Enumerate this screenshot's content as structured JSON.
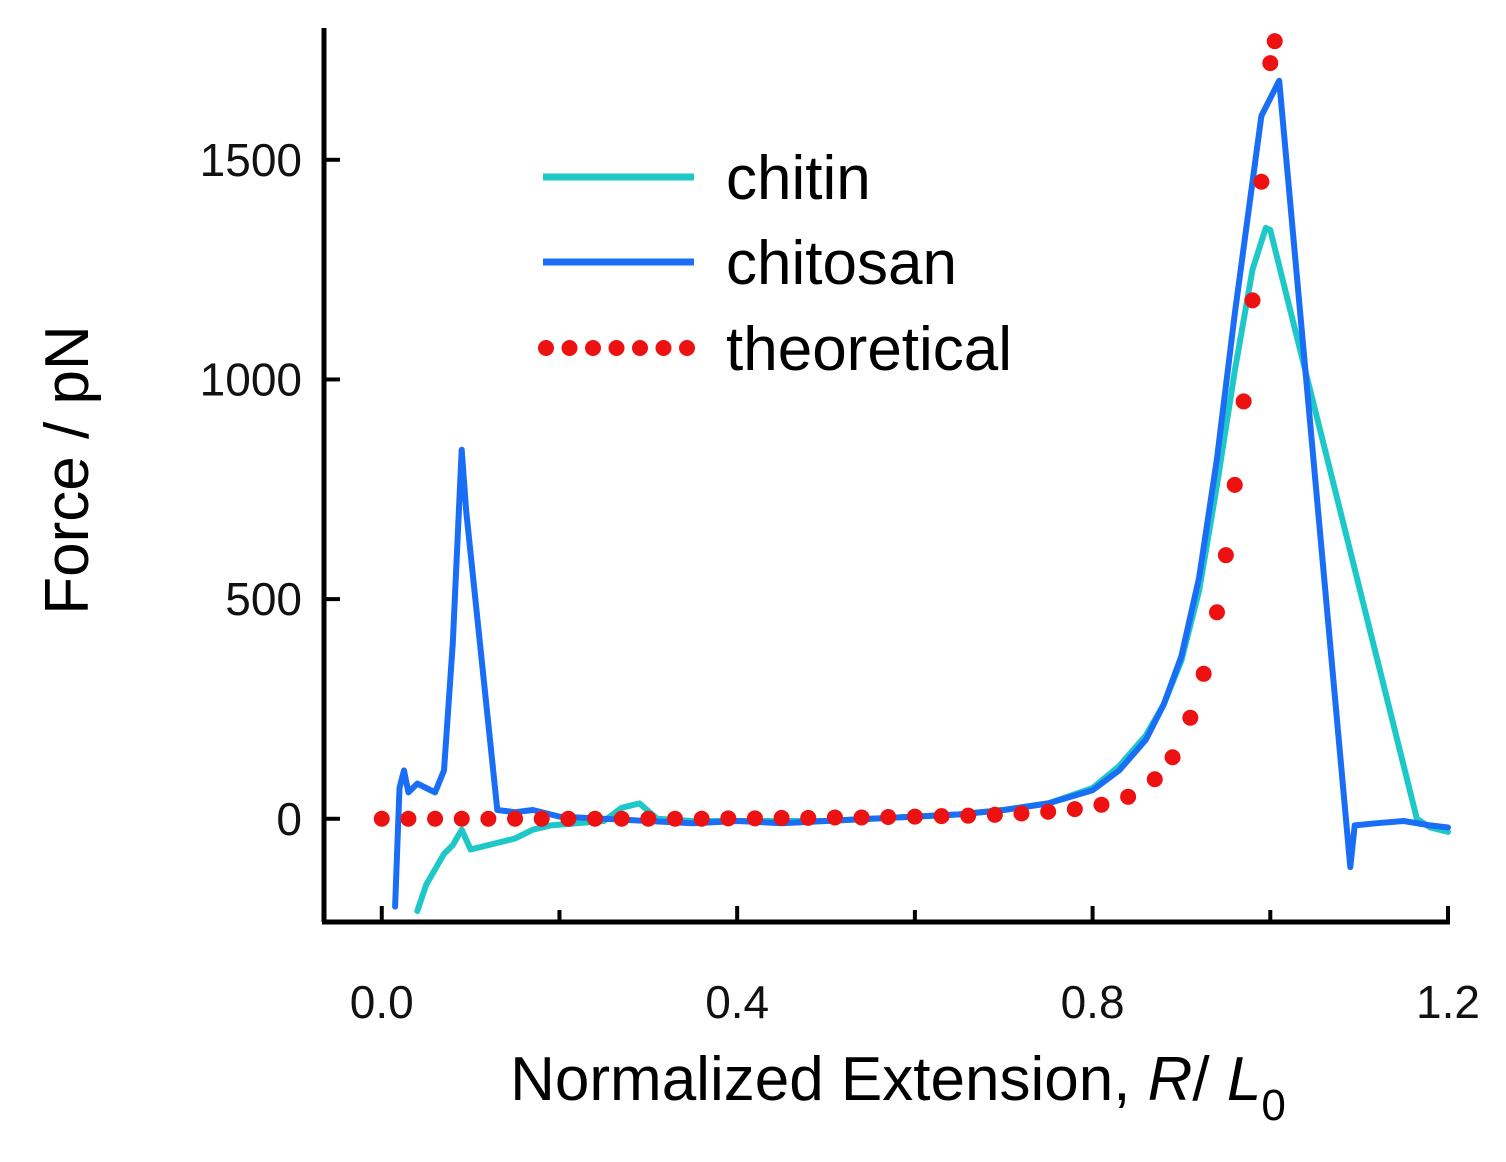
{
  "chart_data": {
    "type": "line",
    "title": "",
    "xlabel": "Normalized Extension, R/ L0",
    "xlabel_parts": {
      "text": "Normalized Extension, ",
      "italic_r": "R",
      "slash": "/ ",
      "italic_l": "L",
      "subscript": "0"
    },
    "ylabel": "Force / pN",
    "xlim": [
      -0.065,
      1.2
    ],
    "ylim": [
      -235,
      1800
    ],
    "x_ticks": [
      "0.0",
      "0.4",
      "0.8",
      "1.2"
    ],
    "x_tick_values": [
      0.0,
      0.4,
      0.8,
      1.2
    ],
    "x_minor_ticks": [
      0.2,
      0.6,
      1.0
    ],
    "y_ticks": [
      "0",
      "500",
      "1000",
      "1500"
    ],
    "y_tick_values": [
      0,
      500,
      1000,
      1500
    ],
    "grid": false,
    "legend_position": "top-center",
    "series": [
      {
        "name": "chitin",
        "color": "#1ec8c8",
        "style": "solid",
        "x": [
          0.04,
          0.05,
          0.06,
          0.07,
          0.08,
          0.09,
          0.1,
          0.11,
          0.13,
          0.15,
          0.17,
          0.19,
          0.22,
          0.25,
          0.27,
          0.29,
          0.31,
          0.35,
          0.4,
          0.45,
          0.5,
          0.55,
          0.6,
          0.65,
          0.7,
          0.75,
          0.8,
          0.83,
          0.86,
          0.88,
          0.9,
          0.92,
          0.94,
          0.96,
          0.98,
          0.995,
          1.0,
          1.165,
          1.18,
          1.2
        ],
        "y": [
          -210,
          -150,
          -115,
          -80,
          -60,
          -25,
          -70,
          -65,
          -55,
          -45,
          -25,
          -15,
          -10,
          -5,
          25,
          35,
          0,
          -5,
          -5,
          -5,
          -5,
          0,
          5,
          10,
          20,
          35,
          70,
          120,
          190,
          260,
          360,
          520,
          760,
          1020,
          1250,
          1345,
          1340,
          0,
          -20,
          -30
        ]
      },
      {
        "name": "chitosan",
        "color": "#1a6ef5",
        "style": "solid",
        "x": [
          0.015,
          0.02,
          0.025,
          0.03,
          0.04,
          0.05,
          0.06,
          0.07,
          0.08,
          0.09,
          0.095,
          0.13,
          0.15,
          0.17,
          0.2,
          0.25,
          0.3,
          0.35,
          0.4,
          0.45,
          0.5,
          0.55,
          0.6,
          0.65,
          0.7,
          0.75,
          0.8,
          0.83,
          0.86,
          0.88,
          0.9,
          0.92,
          0.94,
          0.96,
          0.98,
          0.99,
          1.0,
          1.01,
          1.09,
          1.095,
          1.12,
          1.15,
          1.18,
          1.2
        ],
        "y": [
          -200,
          70,
          110,
          60,
          80,
          70,
          60,
          110,
          400,
          840,
          700,
          20,
          15,
          20,
          5,
          0,
          -5,
          -10,
          -5,
          -10,
          -5,
          0,
          5,
          10,
          20,
          35,
          65,
          110,
          180,
          260,
          370,
          550,
          820,
          1150,
          1450,
          1600,
          1640,
          1680,
          -110,
          -15,
          -10,
          -5,
          -15,
          -20
        ]
      },
      {
        "name": "theoretical",
        "color": "#ee1111",
        "style": "dotted",
        "x": [
          0.0,
          0.03,
          0.06,
          0.09,
          0.12,
          0.15,
          0.18,
          0.21,
          0.24,
          0.27,
          0.3,
          0.33,
          0.36,
          0.39,
          0.42,
          0.45,
          0.48,
          0.51,
          0.54,
          0.57,
          0.6,
          0.63,
          0.66,
          0.69,
          0.72,
          0.75,
          0.78,
          0.81,
          0.84,
          0.87,
          0.89,
          0.91,
          0.925,
          0.94,
          0.95,
          0.96,
          0.97,
          0.98,
          0.99,
          1.0,
          1.005
        ],
        "y": [
          0,
          0,
          0,
          0,
          0,
          0,
          0,
          0,
          0,
          0,
          0,
          0,
          0,
          1,
          1,
          2,
          2,
          3,
          3,
          4,
          5,
          6,
          7,
          9,
          12,
          16,
          22,
          32,
          50,
          90,
          140,
          230,
          330,
          470,
          600,
          760,
          950,
          1180,
          1450,
          1720,
          1770
        ]
      }
    ]
  }
}
